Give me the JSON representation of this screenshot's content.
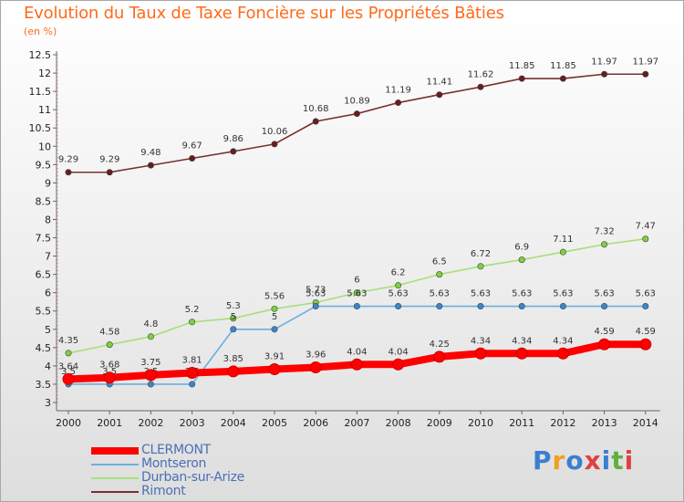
{
  "title": "Evolution du Taux de Taxe Foncière sur les Propriétés Bâties",
  "unit_label": "(en %)",
  "logo": {
    "text": "Proxiti",
    "colors": [
      "#3a7fd0",
      "#f0a020",
      "#3a7fd0",
      "#e04040",
      "#3a7fd0",
      "#60b040",
      "#e04040"
    ]
  },
  "chart_data": {
    "type": "line",
    "x": [
      "2000",
      "2001",
      "2002",
      "2003",
      "2004",
      "2005",
      "2006",
      "2007",
      "2008",
      "2009",
      "2010",
      "2011",
      "2012",
      "2013",
      "2014"
    ],
    "ylim": [
      3,
      12.5
    ],
    "yticks": [
      "3",
      "3.5",
      "4",
      "4.5",
      "5",
      "5.5",
      "6",
      "6.5",
      "7",
      "7.5",
      "8",
      "8.5",
      "9",
      "9.5",
      "10",
      "10.5",
      "11",
      "11.5",
      "12",
      "12.5"
    ],
    "grid": false,
    "legend_position": "bottom-left",
    "series": [
      {
        "name": "CLERMONT",
        "color": "#ff0000",
        "marker": "#ff0000",
        "values": [
          3.64,
          3.68,
          3.75,
          3.81,
          3.85,
          3.91,
          3.96,
          4.04,
          4.04,
          4.25,
          4.34,
          4.34,
          4.34,
          4.59,
          4.59
        ],
        "labels": [
          "3.64",
          "3.68",
          "3.75",
          "3.81",
          "3.85",
          "3.91",
          "3.96",
          "4.04",
          "4.04",
          "4.25",
          "4.34",
          "4.34",
          "4.34",
          "4.59",
          "4.59"
        ]
      },
      {
        "name": "Montseron",
        "color": "#6aaee0",
        "marker": "#3a86cc",
        "values": [
          3.5,
          3.5,
          3.5,
          3.5,
          5,
          5,
          5.63,
          5.63,
          5.63,
          5.63,
          5.63,
          5.63,
          5.63,
          5.63,
          5.63
        ],
        "labels": [
          "3.5",
          "3.5",
          "3.5",
          "3.5",
          "5",
          "5",
          "5.63",
          "5.63",
          "5.63",
          "5.63",
          "5.63",
          "5.63",
          "5.63",
          "5.63",
          "5.63"
        ]
      },
      {
        "name": "Durban-sur-Arize",
        "color": "#a6e07a",
        "marker": "#7cd23c",
        "values": [
          4.35,
          4.58,
          4.8,
          5.2,
          5.3,
          5.56,
          5.73,
          6,
          6.2,
          6.5,
          6.72,
          6.9,
          7.11,
          7.32,
          7.47
        ],
        "labels": [
          "4.35",
          "4.58",
          "4.8",
          "5.2",
          "5.3",
          "5.56",
          "5.73",
          "6",
          "6.2",
          "6.5",
          "6.72",
          "6.9",
          "7.11",
          "7.32",
          "7.47"
        ]
      },
      {
        "name": "Rimont",
        "color": "#7a3030",
        "marker": "#6a1c1c",
        "values": [
          9.29,
          9.29,
          9.48,
          9.67,
          9.86,
          10.06,
          10.68,
          10.89,
          11.19,
          11.41,
          11.62,
          11.85,
          11.85,
          11.97,
          11.97
        ],
        "labels": [
          "9.29",
          "9.29",
          "9.48",
          "9.67",
          "9.86",
          "10.06",
          "10.68",
          "10.89",
          "11.19",
          "11.41",
          "11.62",
          "11.85",
          "11.85",
          "11.97",
          "11.97"
        ]
      }
    ]
  }
}
